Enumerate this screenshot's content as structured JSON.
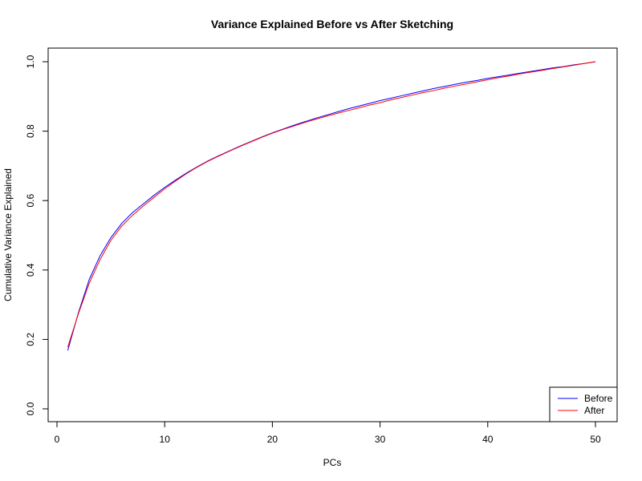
{
  "chart_data": {
    "type": "line",
    "title": "Variance Explained Before vs After Sketching",
    "xlabel": "PCs",
    "ylabel": "Cumulative Variance Explained",
    "xlim": [
      0,
      50
    ],
    "ylim": [
      0,
      1
    ],
    "xticks": [
      "0",
      "10",
      "20",
      "30",
      "40",
      "50"
    ],
    "yticks": [
      "0.0",
      "0.2",
      "0.4",
      "0.6",
      "0.8",
      "1.0"
    ],
    "grid": false,
    "legend_position": "bottom-right",
    "x": [
      1,
      2,
      3,
      4,
      5,
      6,
      7,
      8,
      9,
      10,
      11,
      12,
      13,
      14,
      15,
      16,
      17,
      18,
      19,
      20,
      21,
      22,
      23,
      24,
      25,
      26,
      27,
      28,
      29,
      30,
      31,
      32,
      33,
      34,
      35,
      36,
      37,
      38,
      39,
      40,
      41,
      42,
      43,
      44,
      45,
      46,
      47,
      48,
      49,
      50
    ],
    "series": [
      {
        "name": "Before",
        "color": "#0000ff",
        "values": [
          0.168,
          0.278,
          0.373,
          0.441,
          0.493,
          0.534,
          0.565,
          0.59,
          0.615,
          0.638,
          0.659,
          0.679,
          0.697,
          0.714,
          0.729,
          0.743,
          0.757,
          0.77,
          0.783,
          0.795,
          0.806,
          0.817,
          0.827,
          0.837,
          0.846,
          0.855,
          0.864,
          0.872,
          0.88,
          0.888,
          0.895,
          0.902,
          0.909,
          0.916,
          0.923,
          0.929,
          0.935,
          0.941,
          0.946,
          0.952,
          0.957,
          0.962,
          0.967,
          0.972,
          0.977,
          0.982,
          0.986,
          0.991,
          0.995,
          1.0
        ]
      },
      {
        "name": "After",
        "color": "#ff0000",
        "values": [
          0.178,
          0.275,
          0.362,
          0.43,
          0.485,
          0.526,
          0.557,
          0.584,
          0.609,
          0.634,
          0.656,
          0.677,
          0.696,
          0.713,
          0.728,
          0.742,
          0.756,
          0.769,
          0.782,
          0.794,
          0.805,
          0.815,
          0.825,
          0.834,
          0.843,
          0.851,
          0.859,
          0.867,
          0.875,
          0.882,
          0.89,
          0.897,
          0.904,
          0.911,
          0.917,
          0.924,
          0.93,
          0.936,
          0.942,
          0.948,
          0.954,
          0.959,
          0.965,
          0.97,
          0.975,
          0.98,
          0.985,
          0.99,
          0.995,
          1.0
        ]
      }
    ]
  }
}
